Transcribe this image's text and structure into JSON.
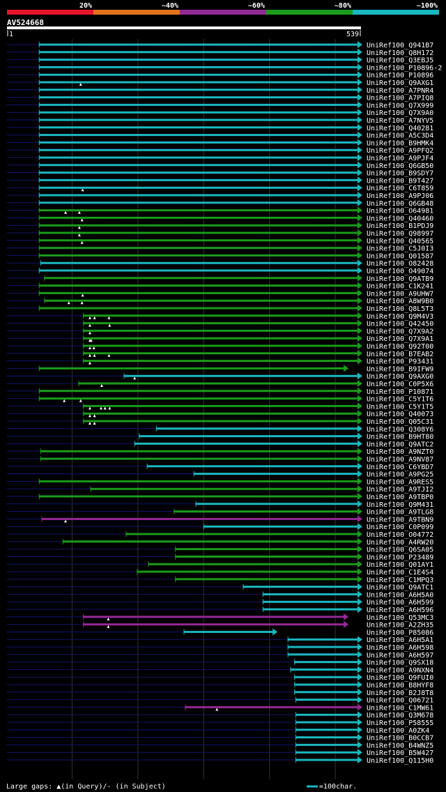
{
  "chart_data": {
    "type": "alignment-overview",
    "title": "AV524668",
    "query_start": "1",
    "query_end": "539",
    "query_length": 539,
    "legend_bins": [
      {
        "label": "20%",
        "color": "#e8142c"
      },
      {
        "label": "~40%",
        "color": "#e2731c"
      },
      {
        "label": "~60%",
        "color": "#942894"
      },
      {
        "label": "~80%",
        "color": "#1a9c1a"
      },
      {
        "label": "~100%",
        "color": "#1ab8c0"
      }
    ],
    "footer_text": "Large gaps: ▲(in Query)/- (in Subject)",
    "scale_text": "=100char.",
    "grid_positions": [
      100,
      200,
      300,
      400,
      500
    ],
    "hits": [
      {
        "id": "UniRef100_Q941B7",
        "start": 50,
        "end": 539,
        "color": "#1ab8c0",
        "marks": []
      },
      {
        "id": "UniRef100_Q8H172",
        "start": 50,
        "end": 539,
        "color": "#1ab8c0",
        "marks": []
      },
      {
        "id": "UniRef100_Q3EBJ5",
        "start": 50,
        "end": 539,
        "color": "#1ab8c0",
        "marks": []
      },
      {
        "id": "UniRef100_P10896-2",
        "start": 50,
        "end": 539,
        "color": "#1ab8c0",
        "marks": []
      },
      {
        "id": "UniRef100_P10896",
        "start": 50,
        "end": 539,
        "color": "#1ab8c0",
        "marks": []
      },
      {
        "id": "UniRef100_Q9AXG1",
        "start": 50,
        "end": 539,
        "color": "#1ab8c0",
        "marks": [
          113
        ]
      },
      {
        "id": "UniRef100_A7PNR4",
        "start": 50,
        "end": 539,
        "color": "#1ab8c0",
        "marks": []
      },
      {
        "id": "UniRef100_A7PIQ8",
        "start": 50,
        "end": 539,
        "color": "#1ab8c0",
        "marks": []
      },
      {
        "id": "UniRef100_Q7X999",
        "start": 50,
        "end": 539,
        "color": "#1ab8c0",
        "marks": []
      },
      {
        "id": "UniRef100_Q7X9A0",
        "start": 50,
        "end": 539,
        "color": "#1ab8c0",
        "marks": []
      },
      {
        "id": "UniRef100_A7NYV5",
        "start": 50,
        "end": 539,
        "color": "#1ab8c0",
        "marks": []
      },
      {
        "id": "UniRef100_Q40281",
        "start": 50,
        "end": 539,
        "color": "#1ab8c0",
        "marks": []
      },
      {
        "id": "UniRef100_A5C3D4",
        "start": 50,
        "end": 539,
        "color": "#1ab8c0",
        "marks": []
      },
      {
        "id": "UniRef100_B9HMK4",
        "start": 50,
        "end": 539,
        "color": "#1ab8c0",
        "marks": []
      },
      {
        "id": "UniRef100_A9PFQ2",
        "start": 50,
        "end": 539,
        "color": "#1ab8c0",
        "marks": []
      },
      {
        "id": "UniRef100_A9PJF4",
        "start": 50,
        "end": 539,
        "color": "#1ab8c0",
        "marks": []
      },
      {
        "id": "UniRef100_Q6GB50",
        "start": 50,
        "end": 539,
        "color": "#1ab8c0",
        "marks": []
      },
      {
        "id": "UniRef100_B9SDY7",
        "start": 50,
        "end": 539,
        "color": "#1ab8c0",
        "marks": []
      },
      {
        "id": "UniRef100_B9T427",
        "start": 50,
        "end": 539,
        "color": "#1ab8c0",
        "marks": []
      },
      {
        "id": "UniRef100_C6T859",
        "start": 50,
        "end": 539,
        "color": "#1ab8c0",
        "marks": [
          116
        ]
      },
      {
        "id": "UniRef100_A9PJ06",
        "start": 50,
        "end": 539,
        "color": "#1ab8c0",
        "marks": []
      },
      {
        "id": "UniRef100_Q6GB48",
        "start": 50,
        "end": 539,
        "color": "#1ab8c0",
        "marks": []
      },
      {
        "id": "UniRef100_O64981",
        "start": 50,
        "end": 539,
        "color": "#1a9c1a",
        "marks": [
          90,
          111
        ]
      },
      {
        "id": "UniRef100_Q40460",
        "start": 50,
        "end": 539,
        "color": "#1a9c1a",
        "marks": [
          115
        ]
      },
      {
        "id": "UniRef100_B1PDJ9",
        "start": 50,
        "end": 539,
        "color": "#1a9c1a",
        "marks": [
          111
        ]
      },
      {
        "id": "UniRef100_Q98997",
        "start": 50,
        "end": 539,
        "color": "#1a9c1a",
        "marks": [
          111
        ]
      },
      {
        "id": "UniRef100_Q40565",
        "start": 50,
        "end": 539,
        "color": "#1a9c1a",
        "marks": [
          115
        ]
      },
      {
        "id": "UniRef100_C5J0I3",
        "start": 50,
        "end": 539,
        "color": "#1a9c1a",
        "marks": []
      },
      {
        "id": "UniRef100_Q01587",
        "start": 50,
        "end": 539,
        "color": "#1a9c1a",
        "marks": []
      },
      {
        "id": "UniRef100_O82428",
        "start": 52,
        "end": 539,
        "color": "#1ab8c0",
        "marks": []
      },
      {
        "id": "UniRef100_O49074",
        "start": 50,
        "end": 539,
        "color": "#1ab8c0",
        "marks": []
      },
      {
        "id": "UniRef100_Q9ATB9",
        "start": 58,
        "end": 539,
        "color": "#1a9c1a",
        "marks": []
      },
      {
        "id": "UniRef100_C1K241",
        "start": 50,
        "end": 539,
        "color": "#1a9c1a",
        "marks": []
      },
      {
        "id": "UniRef100_A9UHW7",
        "start": 50,
        "end": 539,
        "color": "#1a9c1a",
        "marks": [
          116
        ]
      },
      {
        "id": "UniRef100_A8W9B0",
        "start": 58,
        "end": 539,
        "color": "#1a9c1a",
        "marks": [
          95,
          115
        ]
      },
      {
        "id": "UniRef100_Q8L5T3",
        "start": 50,
        "end": 539,
        "color": "#1a9c1a",
        "marks": []
      },
      {
        "id": "UniRef100_Q9M4V3",
        "start": 117,
        "end": 539,
        "color": "#1a9c1a",
        "marks": [
          127,
          134,
          156
        ]
      },
      {
        "id": "UniRef100_Q42450",
        "start": 117,
        "end": 539,
        "color": "#1a9c1a",
        "marks": [
          127,
          157
        ]
      },
      {
        "id": "UniRef100_Q7X9A2",
        "start": 117,
        "end": 539,
        "color": "#1a9c1a",
        "marks": [
          127
        ]
      },
      {
        "id": "UniRef100_Q7X9A1",
        "start": 117,
        "end": 539,
        "color": "#1a9c1a",
        "marks": [
          127,
          129
        ]
      },
      {
        "id": "UniRef100_Q92T00",
        "start": 117,
        "end": 539,
        "color": "#1a9c1a",
        "marks": [
          127,
          133
        ]
      },
      {
        "id": "UniRef100_B7EAB2",
        "start": 117,
        "end": 539,
        "color": "#1a9c1a",
        "marks": [
          127,
          134,
          156
        ]
      },
      {
        "id": "UniRef100_P93431",
        "start": 117,
        "end": 539,
        "color": "#1a9c1a",
        "marks": [
          127
        ]
      },
      {
        "id": "UniRef100_B9IFW9",
        "start": 50,
        "end": 518,
        "color": "#1a9c1a",
        "marks": []
      },
      {
        "id": "UniRef100_Q9AXG0",
        "start": 179,
        "end": 539,
        "color": "#1ab8c0",
        "marks": [
          195
        ]
      },
      {
        "id": "UniRef100_C0P5X6",
        "start": 110,
        "end": 539,
        "color": "#1a9c1a",
        "marks": [
          145
        ]
      },
      {
        "id": "UniRef100_P10871",
        "start": 50,
        "end": 539,
        "color": "#1a9c1a",
        "marks": []
      },
      {
        "id": "UniRef100_C5Y1T6",
        "start": 50,
        "end": 539,
        "color": "#1a9c1a",
        "marks": [
          88,
          113
        ]
      },
      {
        "id": "UniRef100_C5Y1T5",
        "start": 117,
        "end": 539,
        "color": "#1a9c1a",
        "marks": [
          127,
          144,
          150,
          157
        ]
      },
      {
        "id": "UniRef100_Q40073",
        "start": 117,
        "end": 539,
        "color": "#1a9c1a",
        "marks": [
          127,
          134
        ]
      },
      {
        "id": "UniRef100_Q05C31",
        "start": 117,
        "end": 539,
        "color": "#1a9c1a",
        "marks": [
          127,
          134
        ]
      },
      {
        "id": "UniRef100_Q308Y6",
        "start": 228,
        "end": 539,
        "color": "#1ab8c0",
        "marks": []
      },
      {
        "id": "UniRef100_B9HT80",
        "start": 202,
        "end": 539,
        "color": "#1ab8c0",
        "marks": []
      },
      {
        "id": "UniRef100_Q9ATC2",
        "start": 195,
        "end": 539,
        "color": "#1ab8c0",
        "marks": []
      },
      {
        "id": "UniRef100_A9NZT0",
        "start": 52,
        "end": 539,
        "color": "#1a9c1a",
        "marks": []
      },
      {
        "id": "UniRef100_A9NV87",
        "start": 52,
        "end": 539,
        "color": "#1a9c1a",
        "marks": []
      },
      {
        "id": "UniRef100_C6YBD7",
        "start": 214,
        "end": 539,
        "color": "#1ab8c0",
        "marks": []
      },
      {
        "id": "UniRef100_A9PG25",
        "start": 285,
        "end": 539,
        "color": "#1ab8c0",
        "marks": []
      },
      {
        "id": "UniRef100_A9RES5",
        "start": 50,
        "end": 539,
        "color": "#1a9c1a",
        "marks": []
      },
      {
        "id": "UniRef100_A9TJI2",
        "start": 128,
        "end": 539,
        "color": "#1a9c1a",
        "marks": []
      },
      {
        "id": "UniRef100_A9TBP0",
        "start": 50,
        "end": 539,
        "color": "#1a9c1a",
        "marks": []
      },
      {
        "id": "UniRef100_Q9M431",
        "start": 288,
        "end": 539,
        "color": "#1ab8c0",
        "marks": []
      },
      {
        "id": "UniRef100_A9TLG8",
        "start": 255,
        "end": 539,
        "color": "#1a9c1a",
        "marks": []
      },
      {
        "id": "UniRef100_A9TBN9",
        "start": 54,
        "end": 539,
        "color": "#942894",
        "marks": [
          90
        ]
      },
      {
        "id": "UniRef100_C0P099",
        "start": 300,
        "end": 539,
        "color": "#1ab8c0",
        "marks": []
      },
      {
        "id": "UniRef100_O04772",
        "start": 182,
        "end": 539,
        "color": "#1a9c1a",
        "marks": []
      },
      {
        "id": "UniRef100_A4RW20",
        "start": 86,
        "end": 539,
        "color": "#1a9c1a",
        "marks": []
      },
      {
        "id": "UniRef100_Q6SA05",
        "start": 257,
        "end": 539,
        "color": "#1a9c1a",
        "marks": []
      },
      {
        "id": "UniRef100_P23489",
        "start": 257,
        "end": 539,
        "color": "#1a9c1a",
        "marks": []
      },
      {
        "id": "UniRef100_Q01AY1",
        "start": 216,
        "end": 539,
        "color": "#1a9c1a",
        "marks": []
      },
      {
        "id": "UniRef100_C1E4S4",
        "start": 199,
        "end": 539,
        "color": "#1a9c1a",
        "marks": []
      },
      {
        "id": "UniRef100_C1MPQ3",
        "start": 257,
        "end": 539,
        "color": "#1a9c1a",
        "marks": []
      },
      {
        "id": "UniRef100_Q9ATC1",
        "start": 360,
        "end": 539,
        "color": "#1ab8c0",
        "marks": []
      },
      {
        "id": "UniRef100_A6H5A0",
        "start": 390,
        "end": 539,
        "color": "#1ab8c0",
        "marks": []
      },
      {
        "id": "UniRef100_A6H599",
        "start": 390,
        "end": 539,
        "color": "#1ab8c0",
        "marks": []
      },
      {
        "id": "UniRef100_A6H596",
        "start": 390,
        "end": 539,
        "color": "#1ab8c0",
        "marks": []
      },
      {
        "id": "UniRef100_Q53MC3",
        "start": 117,
        "end": 518,
        "color": "#942894",
        "marks": [
          155
        ]
      },
      {
        "id": "UniRef100_A2ZH35",
        "start": 117,
        "end": 518,
        "color": "#942894",
        "marks": [
          155
        ]
      },
      {
        "id": "UniRef100_P85086",
        "start": 270,
        "end": 410,
        "color": "#1ab8c0",
        "marks": []
      },
      {
        "id": "UniRef100_A6H5A1",
        "start": 428,
        "end": 539,
        "color": "#1ab8c0",
        "marks": []
      },
      {
        "id": "UniRef100_A6H598",
        "start": 428,
        "end": 539,
        "color": "#1ab8c0",
        "marks": []
      },
      {
        "id": "UniRef100_A6H597",
        "start": 428,
        "end": 539,
        "color": "#1ab8c0",
        "marks": []
      },
      {
        "id": "UniRef100_Q9SX18",
        "start": 438,
        "end": 539,
        "color": "#1ab8c0",
        "marks": []
      },
      {
        "id": "UniRef100_A9NXN4",
        "start": 432,
        "end": 539,
        "color": "#1ab8c0",
        "marks": []
      },
      {
        "id": "UniRef100_Q9FUI0",
        "start": 438,
        "end": 539,
        "color": "#1ab8c0",
        "marks": []
      },
      {
        "id": "UniRef100_B8HYF8",
        "start": 438,
        "end": 539,
        "color": "#1ab8c0",
        "marks": []
      },
      {
        "id": "UniRef100_B2J8T8",
        "start": 438,
        "end": 539,
        "color": "#1ab8c0",
        "marks": []
      },
      {
        "id": "UniRef100_Q06721",
        "start": 440,
        "end": 539,
        "color": "#1ab8c0",
        "marks": []
      },
      {
        "id": "UniRef100_C1MW61",
        "start": 272,
        "end": 539,
        "color": "#942894",
        "marks": [
          320
        ]
      },
      {
        "id": "UniRef100_Q3M678",
        "start": 440,
        "end": 539,
        "color": "#1ab8c0",
        "marks": []
      },
      {
        "id": "UniRef100_P58555",
        "start": 440,
        "end": 539,
        "color": "#1ab8c0",
        "marks": []
      },
      {
        "id": "UniRef100_A0ZK4",
        "start": 440,
        "end": 539,
        "color": "#1ab8c0",
        "marks": []
      },
      {
        "id": "UniRef100_B0CCB7",
        "start": 440,
        "end": 539,
        "color": "#1ab8c0",
        "marks": []
      },
      {
        "id": "UniRef100_B4WNZ5",
        "start": 440,
        "end": 539,
        "color": "#1ab8c0",
        "marks": []
      },
      {
        "id": "UniRef100_B5W427",
        "start": 440,
        "end": 539,
        "color": "#1ab8c0",
        "marks": []
      },
      {
        "id": "UniRef100_Q115H0",
        "start": 440,
        "end": 539,
        "color": "#1ab8c0",
        "marks": []
      }
    ]
  }
}
